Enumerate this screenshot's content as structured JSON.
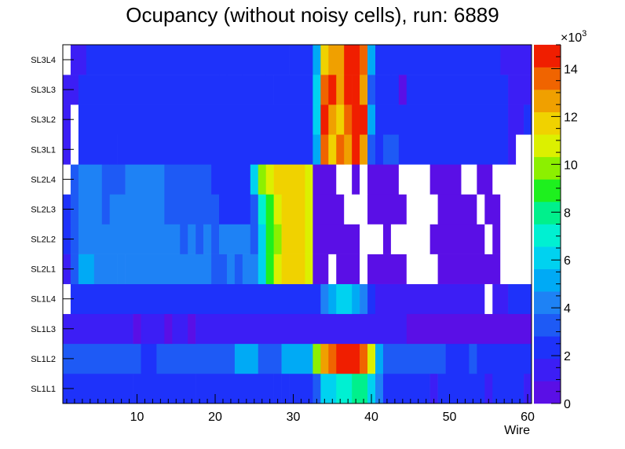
{
  "chart_data": {
    "type": "heatmap",
    "title": "Ocupancy (without noisy cells), run: 6889",
    "xlabel": "Wire",
    "ylabel": "",
    "xlim": [
      0.5,
      60.5
    ],
    "x_ticks": [
      10,
      20,
      30,
      40,
      50,
      60
    ],
    "y_categories": [
      "SL1L1",
      "SL1L2",
      "SL1L3",
      "SL1L4",
      "SL2L1",
      "SL2L2",
      "SL2L3",
      "SL2L4",
      "SL3L1",
      "SL3L2",
      "SL3L3",
      "SL3L4"
    ],
    "color_scale": {
      "min": 0,
      "max": 15,
      "multiplier_label": "×10",
      "multiplier_exponent": "3",
      "tick_labels": [
        "0",
        "2",
        "4",
        "6",
        "8",
        "10",
        "12",
        "14"
      ],
      "tick_values": [
        0,
        2,
        4,
        6,
        8,
        10,
        12,
        14
      ],
      "colors": [
        "#5a0fe6",
        "#3c1ef5",
        "#1e32fa",
        "#1e5af5",
        "#1e82f5",
        "#00aaf5",
        "#00d2f0",
        "#00f0d2",
        "#00f08c",
        "#1ef01e",
        "#8cf000",
        "#dcf000",
        "#f0d200",
        "#f0a000",
        "#f06400",
        "#f01e00"
      ]
    },
    "empty_color": "#ffffff",
    "rows": [
      {
        "label": "SL1L1",
        "segments": [
          [
            1,
            1,
            2.0
          ],
          [
            2,
            9,
            2.6
          ],
          [
            10,
            12,
            1.9
          ],
          [
            13,
            13,
            2.6
          ],
          [
            14,
            17,
            1.9
          ],
          [
            18,
            24,
            2.6
          ],
          [
            25,
            25,
            1.9
          ],
          [
            26,
            27,
            2.6
          ],
          [
            28,
            28,
            2.0
          ],
          [
            29,
            29,
            2.6
          ],
          [
            30,
            31,
            2.1
          ],
          [
            32,
            32,
            2.6
          ],
          [
            33,
            33,
            3.7
          ],
          [
            34,
            35,
            6.3
          ],
          [
            36,
            37,
            7.0
          ],
          [
            38,
            39,
            7.5
          ],
          [
            40,
            40,
            6.5
          ],
          [
            41,
            41,
            4.2
          ],
          [
            42,
            47,
            2.3
          ],
          [
            48,
            48,
            1.5
          ],
          [
            49,
            54,
            2.3
          ],
          [
            55,
            55,
            1.5
          ],
          [
            56,
            59,
            2.3
          ],
          [
            60,
            60,
            1.0
          ]
        ]
      },
      {
        "label": "SL1L2",
        "segments": [
          [
            1,
            10,
            3.7
          ],
          [
            11,
            12,
            2.6
          ],
          [
            13,
            22,
            3.7
          ],
          [
            23,
            25,
            4.9
          ],
          [
            26,
            28,
            3.7
          ],
          [
            29,
            32,
            4.9
          ],
          [
            33,
            33,
            9.5
          ],
          [
            34,
            34,
            13.0
          ],
          [
            35,
            35,
            14.0
          ],
          [
            36,
            38,
            15.0
          ],
          [
            39,
            39,
            13.5
          ],
          [
            40,
            40,
            10.5
          ],
          [
            41,
            41,
            4.9
          ],
          [
            42,
            49,
            3.7
          ],
          [
            50,
            52,
            2.6
          ],
          [
            53,
            53,
            3.7
          ],
          [
            54,
            60,
            2.6
          ]
        ]
      },
      {
        "label": "SL1L3",
        "segments": [
          [
            1,
            9,
            1.2
          ],
          [
            10,
            10,
            0.9
          ],
          [
            11,
            13,
            1.2
          ],
          [
            14,
            14,
            0.9
          ],
          [
            15,
            16,
            1.2
          ],
          [
            17,
            17,
            0.9
          ],
          [
            18,
            40,
            1.2
          ],
          [
            41,
            44,
            1.0
          ],
          [
            45,
            60,
            0.9
          ]
        ]
      },
      {
        "label": "SL1L4",
        "segments": [
          [
            1,
            1,
            null
          ],
          [
            2,
            33,
            2.0
          ],
          [
            34,
            34,
            4.2
          ],
          [
            35,
            35,
            5.0
          ],
          [
            36,
            37,
            6.0
          ],
          [
            38,
            38,
            4.7
          ],
          [
            39,
            39,
            4.2
          ],
          [
            40,
            40,
            2.6
          ],
          [
            41,
            54,
            1.2
          ],
          [
            55,
            55,
            null
          ],
          [
            56,
            57,
            1.2
          ],
          [
            58,
            60,
            1.9
          ]
        ]
      },
      {
        "label": "SL2L1",
        "segments": [
          [
            1,
            1,
            1.2
          ],
          [
            2,
            2,
            3.7
          ],
          [
            3,
            3,
            4.8
          ],
          [
            4,
            4,
            5.6
          ],
          [
            5,
            7,
            4.5
          ],
          [
            8,
            8,
            4.0
          ],
          [
            9,
            19,
            4.5
          ],
          [
            20,
            21,
            3.7
          ],
          [
            22,
            22,
            4.5
          ],
          [
            23,
            23,
            3.7
          ],
          [
            24,
            25,
            4.5
          ],
          [
            26,
            26,
            6.0
          ],
          [
            27,
            27,
            9.3
          ],
          [
            28,
            28,
            10.5
          ],
          [
            29,
            31,
            11.6
          ],
          [
            32,
            32,
            11.0
          ],
          [
            33,
            34,
            0.8
          ],
          [
            35,
            35,
            null
          ],
          [
            36,
            38,
            0.8
          ],
          [
            39,
            39,
            null
          ],
          [
            40,
            44,
            0.8
          ],
          [
            45,
            48,
            null
          ],
          [
            49,
            56,
            0.8
          ],
          [
            57,
            60,
            null
          ]
        ]
      },
      {
        "label": "SL2L2",
        "segments": [
          [
            1,
            1,
            2.0
          ],
          [
            2,
            2,
            3.7
          ],
          [
            3,
            15,
            4.5
          ],
          [
            16,
            16,
            3.7
          ],
          [
            17,
            17,
            4.5
          ],
          [
            18,
            18,
            3.7
          ],
          [
            19,
            19,
            4.5
          ],
          [
            20,
            20,
            3.7
          ],
          [
            21,
            24,
            4.5
          ],
          [
            25,
            25,
            3.7
          ],
          [
            26,
            26,
            6.0
          ],
          [
            27,
            27,
            8.8
          ],
          [
            28,
            28,
            10.0
          ],
          [
            29,
            31,
            11.6
          ],
          [
            32,
            32,
            11.0
          ],
          [
            33,
            38,
            0.8
          ],
          [
            39,
            41,
            null
          ],
          [
            42,
            42,
            0.8
          ],
          [
            43,
            47,
            null
          ],
          [
            48,
            54,
            0.8
          ],
          [
            55,
            55,
            null
          ],
          [
            56,
            56,
            0.8
          ],
          [
            57,
            60,
            null
          ]
        ]
      },
      {
        "label": "SL2L3",
        "segments": [
          [
            1,
            1,
            2.6
          ],
          [
            2,
            2,
            3.7
          ],
          [
            3,
            5,
            4.5
          ],
          [
            6,
            6,
            3.7
          ],
          [
            7,
            13,
            4.5
          ],
          [
            14,
            20,
            3.7
          ],
          [
            21,
            24,
            2.6
          ],
          [
            25,
            25,
            3.7
          ],
          [
            26,
            26,
            6.8
          ],
          [
            27,
            27,
            9.2
          ],
          [
            28,
            28,
            10.5
          ],
          [
            29,
            31,
            11.6
          ],
          [
            32,
            32,
            11.0
          ],
          [
            33,
            36,
            0.8
          ],
          [
            37,
            39,
            null
          ],
          [
            40,
            44,
            0.8
          ],
          [
            45,
            48,
            null
          ],
          [
            49,
            53,
            0.8
          ],
          [
            54,
            54,
            null
          ],
          [
            55,
            56,
            0.8
          ],
          [
            57,
            60,
            null
          ]
        ]
      },
      {
        "label": "SL2L4",
        "segments": [
          [
            1,
            1,
            null
          ],
          [
            2,
            2,
            3.7
          ],
          [
            3,
            5,
            4.5
          ],
          [
            6,
            8,
            3.7
          ],
          [
            9,
            13,
            4.5
          ],
          [
            14,
            19,
            3.7
          ],
          [
            20,
            24,
            2.6
          ],
          [
            25,
            25,
            6.0
          ],
          [
            26,
            26,
            9.5
          ],
          [
            27,
            27,
            10.5
          ],
          [
            28,
            31,
            11.6
          ],
          [
            32,
            32,
            11.0
          ],
          [
            33,
            35,
            0.8
          ],
          [
            36,
            37,
            null
          ],
          [
            38,
            38,
            0.8
          ],
          [
            39,
            39,
            null
          ],
          [
            40,
            43,
            0.8
          ],
          [
            44,
            47,
            null
          ],
          [
            48,
            51,
            0.8
          ],
          [
            52,
            53,
            null
          ],
          [
            54,
            55,
            0.8
          ],
          [
            56,
            60,
            null
          ]
        ]
      },
      {
        "label": "SL3L1",
        "segments": [
          [
            1,
            1,
            1.2
          ],
          [
            2,
            2,
            null
          ],
          [
            3,
            6,
            2.0
          ],
          [
            7,
            7,
            2.6
          ],
          [
            8,
            32,
            2.0
          ],
          [
            33,
            33,
            4.9
          ],
          [
            34,
            34,
            13.2
          ],
          [
            35,
            35,
            12.0
          ],
          [
            36,
            36,
            14.0
          ],
          [
            37,
            37,
            12.4
          ],
          [
            38,
            38,
            14.5
          ],
          [
            39,
            39,
            13.0
          ],
          [
            40,
            40,
            3.7
          ],
          [
            41,
            41,
            1.9
          ],
          [
            42,
            43,
            3.7
          ],
          [
            44,
            57,
            1.9
          ],
          [
            58,
            58,
            1.2
          ],
          [
            59,
            60,
            null
          ]
        ]
      },
      {
        "label": "SL3L2",
        "segments": [
          [
            1,
            1,
            1.2
          ],
          [
            2,
            2,
            null
          ],
          [
            3,
            20,
            2.0
          ],
          [
            21,
            32,
            2.3
          ],
          [
            33,
            33,
            5.7
          ],
          [
            34,
            34,
            14.5
          ],
          [
            35,
            35,
            12.2
          ],
          [
            36,
            36,
            11.4
          ],
          [
            37,
            37,
            13.7
          ],
          [
            38,
            39,
            14.8
          ],
          [
            40,
            40,
            5.0
          ],
          [
            41,
            42,
            2.6
          ],
          [
            43,
            57,
            1.9
          ],
          [
            58,
            59,
            1.2
          ],
          [
            60,
            60,
            1.9
          ]
        ]
      },
      {
        "label": "SL3L3",
        "segments": [
          [
            1,
            2,
            1.2
          ],
          [
            3,
            20,
            2.0
          ],
          [
            21,
            21,
            2.6
          ],
          [
            22,
            23,
            2.0
          ],
          [
            24,
            26,
            2.6
          ],
          [
            27,
            27,
            2.0
          ],
          [
            28,
            32,
            2.6
          ],
          [
            33,
            33,
            6.0
          ],
          [
            34,
            34,
            13.2
          ],
          [
            35,
            35,
            14.2
          ],
          [
            36,
            36,
            12.6
          ],
          [
            37,
            37,
            14.3
          ],
          [
            38,
            38,
            15.0
          ],
          [
            39,
            39,
            12.6
          ],
          [
            40,
            40,
            3.7
          ],
          [
            41,
            43,
            2.6
          ],
          [
            44,
            44,
            0.9
          ],
          [
            45,
            57,
            2.0
          ],
          [
            58,
            60,
            1.2
          ]
        ]
      },
      {
        "label": "SL3L4",
        "segments": [
          [
            1,
            1,
            null
          ],
          [
            2,
            3,
            1.2
          ],
          [
            4,
            29,
            2.0
          ],
          [
            30,
            32,
            2.6
          ],
          [
            33,
            33,
            4.9
          ],
          [
            34,
            34,
            11.7
          ],
          [
            35,
            35,
            13.0
          ],
          [
            36,
            36,
            12.4
          ],
          [
            37,
            38,
            15.0
          ],
          [
            39,
            39,
            13.3
          ],
          [
            40,
            40,
            5.0
          ],
          [
            41,
            42,
            2.6
          ],
          [
            43,
            56,
            1.9
          ],
          [
            57,
            60,
            1.2
          ]
        ]
      }
    ]
  }
}
